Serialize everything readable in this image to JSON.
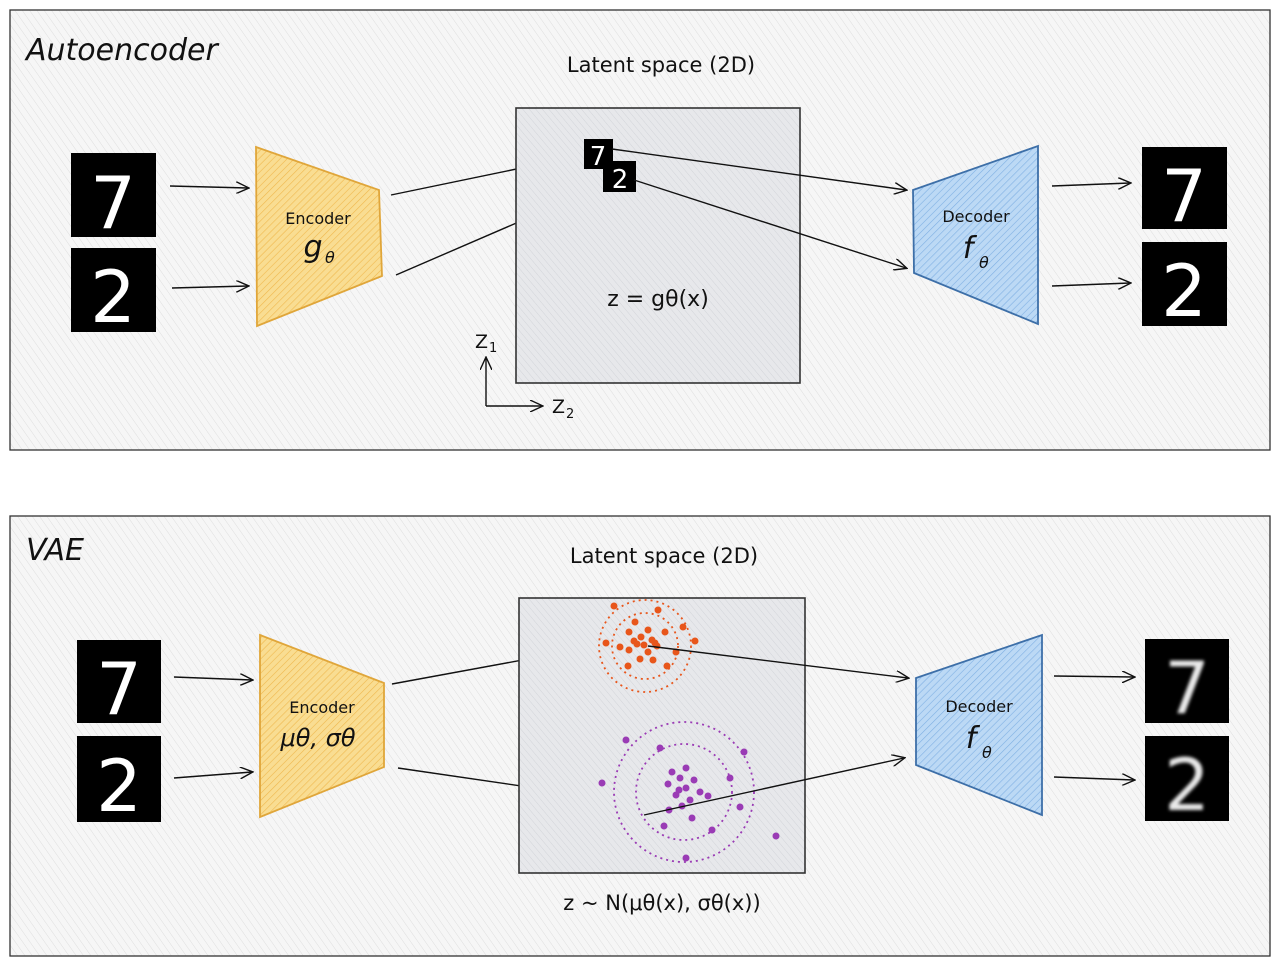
{
  "panels": [
    {
      "title": "Autoencoder",
      "latent_label": "Latent space (2D)",
      "encoder": {
        "label": "Encoder",
        "symbol": "g",
        "subscript": "θ"
      },
      "decoder": {
        "label": "Decoder",
        "symbol": "f",
        "subscript": "θ"
      },
      "equation": "z = gθ(x)",
      "axes": {
        "z1": "Z",
        "z1_sub": "1",
        "z2": "Z",
        "z2_sub": "2"
      },
      "inputs": [
        "7",
        "2"
      ],
      "outputs": [
        "7",
        "2"
      ],
      "latent_marks": [
        "7",
        "2"
      ]
    },
    {
      "title": "VAE",
      "latent_label": "Latent space (2D)",
      "encoder": {
        "label": "Encoder",
        "symbol": "μθ, σθ"
      },
      "decoder": {
        "label": "Decoder",
        "symbol": "f",
        "subscript": "θ"
      },
      "equation": "z ~ N(μθ(x), σθ(x))",
      "inputs": [
        "7",
        "2"
      ],
      "outputs": [
        "7",
        "2"
      ]
    }
  ],
  "colors": {
    "encoder_fill": "#f7d27a",
    "encoder_stroke": "#e0a63a",
    "decoder_fill": "#a9cdf2",
    "decoder_stroke": "#3d6fa8",
    "latent_fill": "#e6e7ea",
    "cluster_seven": "#e8561b",
    "cluster_two": "#9a3bb5"
  }
}
